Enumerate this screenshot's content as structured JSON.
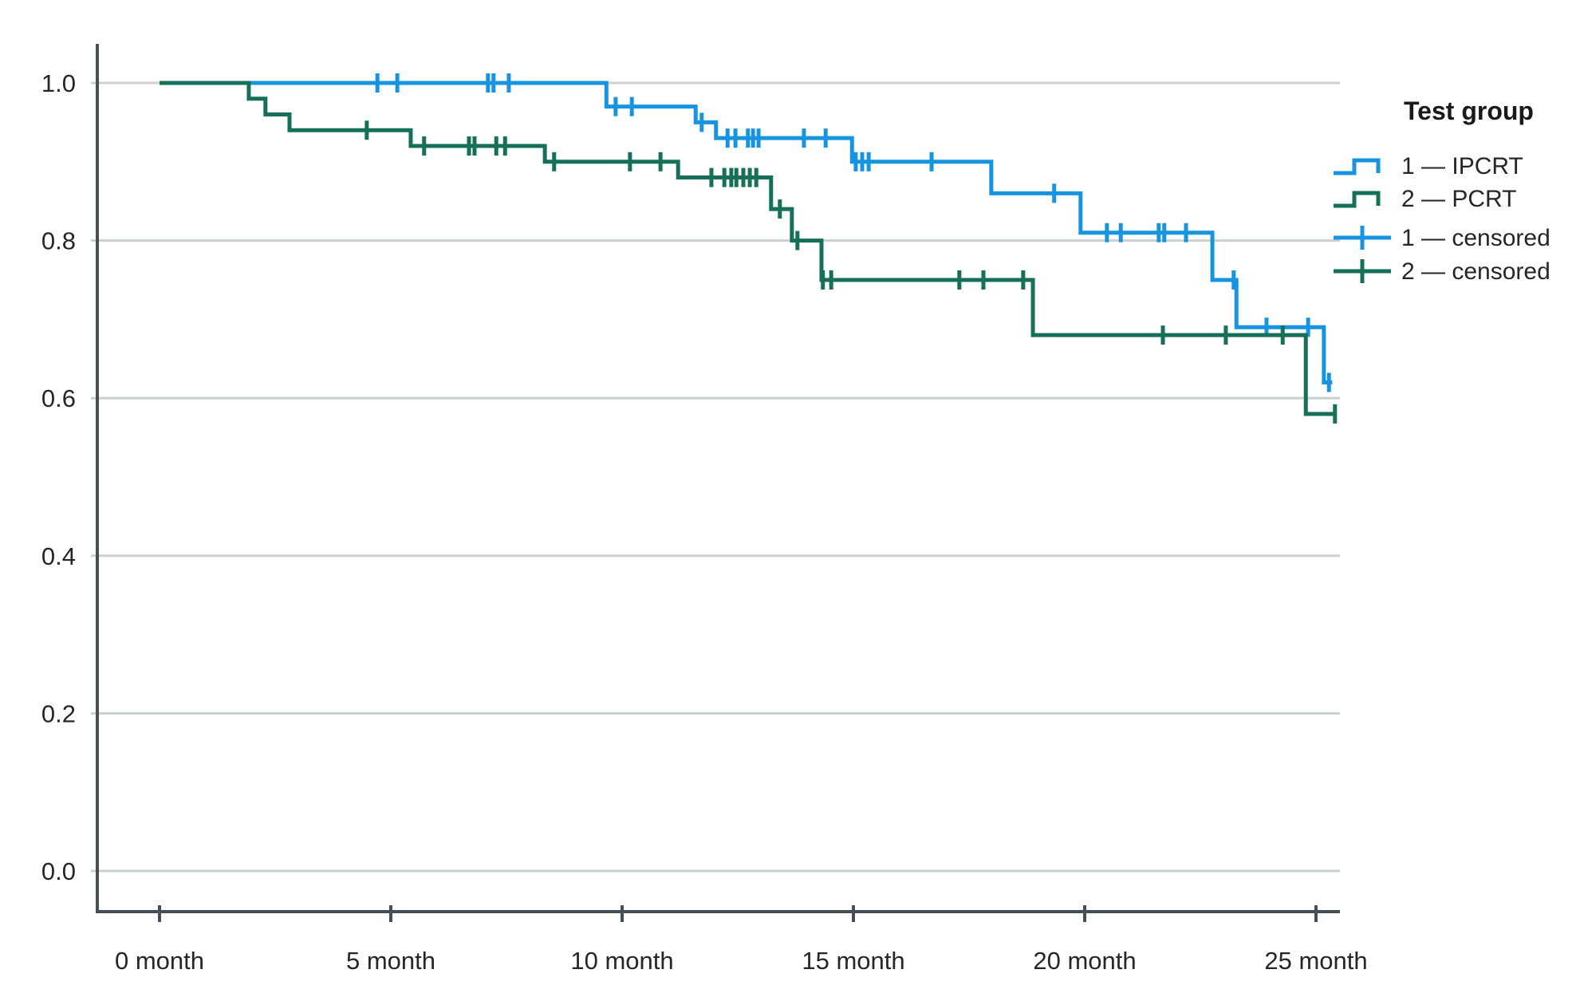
{
  "chart_data": {
    "type": "line",
    "subtype": "kaplan_meier_step",
    "title": "",
    "grid": true,
    "legend_position": "right",
    "colors": {
      "group1_blue": "#1794DF",
      "group2_green": "#166F59",
      "grid": "#CBD0D2",
      "axis": "#454F58",
      "text": "#262626"
    },
    "x_axis": {
      "range": [
        0,
        25.6
      ],
      "ticks": [
        {
          "value": 0,
          "label": "0 month"
        },
        {
          "value": 5,
          "label": "5 month"
        },
        {
          "value": 10,
          "label": "10 month"
        },
        {
          "value": 15,
          "label": "15 month"
        },
        {
          "value": 20,
          "label": "20 month"
        },
        {
          "value": 25,
          "label": "25 month"
        }
      ]
    },
    "y_axis": {
      "range": [
        0.0,
        1.05
      ],
      "ticks": [
        {
          "value": 1.0,
          "label": "1.0"
        },
        {
          "value": 0.8,
          "label": "0.8"
        },
        {
          "value": 0.6,
          "label": "0.6"
        },
        {
          "value": 0.4,
          "label": "0.4"
        },
        {
          "value": 0.2,
          "label": "0.2"
        },
        {
          "value": 0.0,
          "label": "0.0"
        }
      ]
    },
    "legend": {
      "title": "Test group",
      "items": [
        {
          "label": "1 — IPCRT",
          "type": "step-line",
          "color": "#1794DF"
        },
        {
          "label": "2 — PCRT",
          "type": "step-line",
          "color": "#166F59"
        },
        {
          "label": "1 — censored",
          "type": "censor",
          "color": "#1794DF"
        },
        {
          "label": "2 — censored",
          "type": "censor",
          "color": "#166F59"
        }
      ]
    },
    "series": [
      {
        "name": "1 — IPCRT",
        "group": "ipcrt",
        "color": "#1794DF",
        "end_month": 25.35,
        "steps": [
          [
            0,
            1.0
          ],
          [
            9.66,
            0.97
          ],
          [
            11.59,
            0.95
          ],
          [
            12.03,
            0.93
          ],
          [
            14.97,
            0.9
          ],
          [
            17.98,
            0.86
          ],
          [
            19.91,
            0.81
          ],
          [
            22.76,
            0.75
          ],
          [
            23.28,
            0.69
          ],
          [
            25.17,
            0.62
          ]
        ],
        "censored": [
          [
            4.71,
            1.0
          ],
          [
            5.14,
            1.0
          ],
          [
            7.1,
            1.0
          ],
          [
            7.22,
            1.0
          ],
          [
            7.55,
            1.0
          ],
          [
            9.86,
            0.97
          ],
          [
            10.21,
            0.97
          ],
          [
            11.72,
            0.95
          ],
          [
            12.28,
            0.93
          ],
          [
            12.45,
            0.93
          ],
          [
            12.72,
            0.93
          ],
          [
            12.83,
            0.93
          ],
          [
            12.95,
            0.93
          ],
          [
            13.93,
            0.93
          ],
          [
            14.4,
            0.93
          ],
          [
            15.05,
            0.9
          ],
          [
            15.19,
            0.9
          ],
          [
            15.33,
            0.9
          ],
          [
            16.69,
            0.9
          ],
          [
            19.34,
            0.86
          ],
          [
            20.48,
            0.81
          ],
          [
            20.78,
            0.81
          ],
          [
            21.6,
            0.81
          ],
          [
            21.72,
            0.81
          ],
          [
            22.19,
            0.81
          ],
          [
            23.22,
            0.75
          ],
          [
            23.93,
            0.69
          ],
          [
            24.83,
            0.69
          ],
          [
            25.28,
            0.62
          ]
        ]
      },
      {
        "name": "2 — PCRT",
        "group": "pcrt",
        "color": "#166F59",
        "end_month": 25.43,
        "steps": [
          [
            0,
            1.0
          ],
          [
            1.93,
            0.98
          ],
          [
            2.29,
            0.96
          ],
          [
            2.81,
            0.94
          ],
          [
            5.43,
            0.92
          ],
          [
            8.33,
            0.9
          ],
          [
            11.21,
            0.88
          ],
          [
            13.22,
            0.84
          ],
          [
            13.67,
            0.8
          ],
          [
            14.31,
            0.75
          ],
          [
            18.88,
            0.68
          ],
          [
            24.78,
            0.58
          ]
        ],
        "censored": [
          [
            4.48,
            0.94
          ],
          [
            5.72,
            0.92
          ],
          [
            6.69,
            0.92
          ],
          [
            6.81,
            0.92
          ],
          [
            7.28,
            0.92
          ],
          [
            7.47,
            0.92
          ],
          [
            8.53,
            0.9
          ],
          [
            10.17,
            0.9
          ],
          [
            10.83,
            0.9
          ],
          [
            11.93,
            0.88
          ],
          [
            12.21,
            0.88
          ],
          [
            12.36,
            0.88
          ],
          [
            12.47,
            0.88
          ],
          [
            12.62,
            0.88
          ],
          [
            12.76,
            0.88
          ],
          [
            12.9,
            0.88
          ],
          [
            13.41,
            0.84
          ],
          [
            13.79,
            0.8
          ],
          [
            14.34,
            0.75
          ],
          [
            14.52,
            0.75
          ],
          [
            17.29,
            0.75
          ],
          [
            17.81,
            0.75
          ],
          [
            18.67,
            0.75
          ],
          [
            21.69,
            0.68
          ],
          [
            23.05,
            0.68
          ],
          [
            24.28,
            0.68
          ],
          [
            25.41,
            0.58
          ]
        ]
      }
    ]
  }
}
